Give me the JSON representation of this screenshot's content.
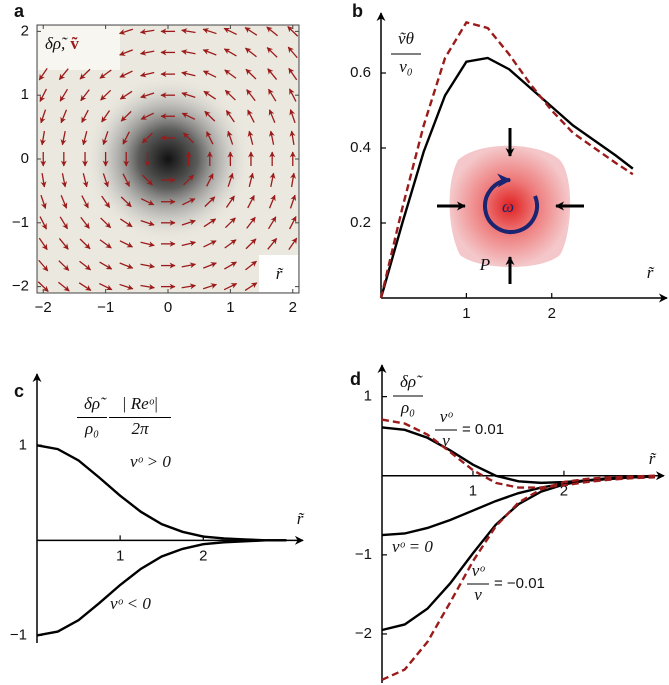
{
  "chart_data": [
    {
      "type": "vector_field",
      "panel_label": "a",
      "label": "δρ̃,",
      "label_vector": "ṽ",
      "corner_label": "r̃",
      "xlim": [
        -2.1,
        2.1
      ],
      "ylim": [
        -2.1,
        2.1
      ],
      "xticks": [
        {
          "value": -2,
          "label": "−2"
        },
        {
          "value": -1,
          "label": "−1"
        },
        0,
        1,
        2
      ],
      "yticks": [
        {
          "value": -2,
          "label": "−2"
        },
        {
          "value": -1,
          "label": "−1"
        },
        0,
        1,
        2
      ],
      "arrow_x": [
        -2,
        -1.67,
        -1.33,
        -1,
        -0.67,
        -0.33,
        0,
        0.33,
        0.67,
        1,
        1.33,
        1.67,
        2
      ],
      "arrow_y": [
        -2,
        -1.67,
        -1.33,
        -1,
        -0.67,
        -0.33,
        0,
        0.33,
        0.67,
        1,
        1.33,
        1.67,
        2
      ],
      "color": "#9b1b1b"
    },
    {
      "type": "line",
      "panel_label": "b",
      "ylabel": {
        "num": "ṽθ",
        "den": "v₀"
      },
      "xlabel": "r̃",
      "inset_labels": [
        "ω",
        "P"
      ],
      "x": [
        0,
        0.25,
        0.5,
        0.75,
        1,
        1.25,
        1.5,
        1.75,
        2,
        2.25,
        2.5,
        2.75,
        2.95
      ],
      "xlim": [
        0,
        3.35
      ],
      "ylim": [
        0,
        0.76
      ],
      "xticks": [
        1,
        2
      ],
      "yticks": [
        0.2,
        0.4,
        0.6
      ],
      "series": [
        {
          "color": "#000000",
          "dashed": false,
          "values": [
            0,
            0.2,
            0.39,
            0.54,
            0.63,
            0.64,
            0.61,
            0.56,
            0.51,
            0.46,
            0.42,
            0.38,
            0.345
          ]
        },
        {
          "color": "#9b1b1b",
          "dashed": true,
          "values": [
            0,
            0.24,
            0.46,
            0.64,
            0.735,
            0.72,
            0.65,
            0.57,
            0.5,
            0.44,
            0.4,
            0.36,
            0.33
          ]
        }
      ]
    },
    {
      "type": "line",
      "panel_label": "c",
      "ylabel": {
        "num": "δρ̃",
        "den": "ρ₀"
      },
      "ylabel_factor": {
        "num": "| Reᵒ|",
        "den": "2π"
      },
      "xlabel": "r̃",
      "annotations": [
        {
          "text": "vᵒ > 0"
        },
        {
          "text": "vᵒ < 0"
        }
      ],
      "x": [
        0,
        0.25,
        0.5,
        0.75,
        1,
        1.25,
        1.5,
        1.75,
        2,
        2.25,
        2.5,
        2.75,
        3
      ],
      "xlim": [
        0,
        3.2
      ],
      "ylim": [
        -1.08,
        1.75
      ],
      "xticks": [
        1,
        2
      ],
      "yticks": [
        1,
        {
          "value": -1,
          "label": "−1"
        }
      ],
      "series": [
        {
          "color": "#000000",
          "dashed": false,
          "values": [
            1,
            0.96,
            0.84,
            0.66,
            0.47,
            0.3,
            0.17,
            0.09,
            0.04,
            0.02,
            0.01,
            0,
            0
          ]
        },
        {
          "color": "#000000",
          "dashed": false,
          "values": [
            -1,
            -0.96,
            -0.84,
            -0.66,
            -0.47,
            -0.3,
            -0.17,
            -0.09,
            -0.04,
            -0.02,
            -0.01,
            0,
            0
          ]
        }
      ]
    },
    {
      "type": "line",
      "panel_label": "d",
      "ylabel": {
        "num": "δρ̃",
        "den": "ρ₀"
      },
      "xlabel": "r̃",
      "annotations": [
        {
          "num": "vᵒ",
          "den": "v",
          "rest": "= 0.01"
        },
        {
          "text": "vᵒ = 0"
        },
        {
          "num": "vᵒ",
          "den": "v",
          "rest": "= −0.01"
        }
      ],
      "x": [
        0,
        0.25,
        0.5,
        0.75,
        1,
        1.25,
        1.5,
        1.75,
        2,
        2.25,
        2.5,
        2.75,
        3
      ],
      "xlim": [
        0,
        3.1
      ],
      "ylim": [
        -2.62,
        1.4
      ],
      "xticks": [
        1,
        2
      ],
      "yticks": [
        1,
        {
          "value": -1,
          "label": "−1"
        },
        {
          "value": -2,
          "label": "−2"
        }
      ],
      "series": [
        {
          "color": "#000000",
          "dashed": false,
          "values": [
            0.61,
            0.58,
            0.48,
            0.32,
            0.14,
            0,
            -0.07,
            -0.09,
            -0.08,
            -0.06,
            -0.04,
            -0.02,
            -0.01
          ]
        },
        {
          "color": "#000000",
          "dashed": false,
          "values": [
            -0.75,
            -0.73,
            -0.66,
            -0.56,
            -0.44,
            -0.32,
            -0.22,
            -0.15,
            -0.1,
            -0.06,
            -0.04,
            -0.02,
            -0.01
          ]
        },
        {
          "color": "#000000",
          "dashed": false,
          "values": [
            -1.95,
            -1.88,
            -1.68,
            -1.36,
            -0.98,
            -0.62,
            -0.36,
            -0.2,
            -0.11,
            -0.06,
            -0.03,
            -0.02,
            -0.01
          ]
        },
        {
          "color": "#9b1b1b",
          "dashed": true,
          "values": [
            0.71,
            0.66,
            0.52,
            0.3,
            0.07,
            -0.09,
            -0.15,
            -0.15,
            -0.12,
            -0.08,
            -0.05,
            -0.03,
            -0.02
          ]
        },
        {
          "color": "#9b1b1b",
          "dashed": true,
          "values": [
            -2.58,
            -2.45,
            -2.1,
            -1.6,
            -1.08,
            -0.64,
            -0.34,
            -0.17,
            -0.08,
            -0.04,
            -0.02,
            -0.01,
            0
          ]
        }
      ]
    }
  ]
}
